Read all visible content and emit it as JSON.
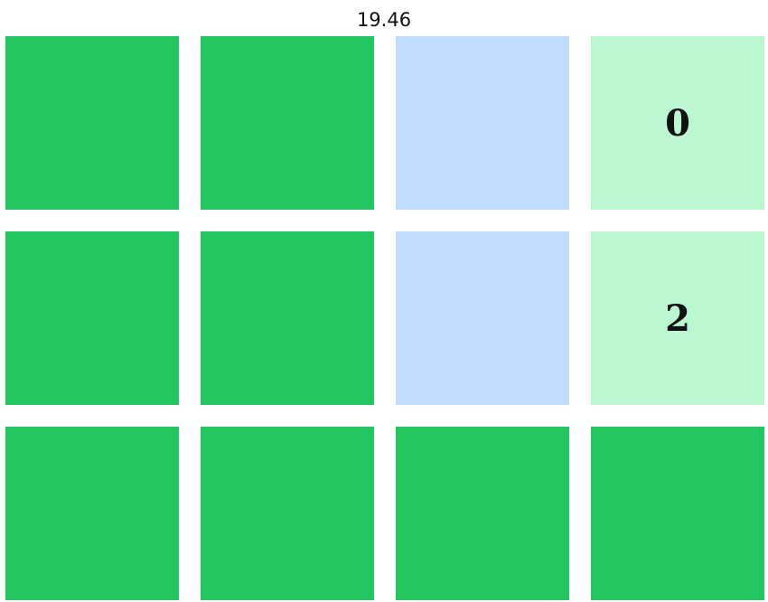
{
  "timer": "19.46",
  "colors": {
    "solved": "#22c55e",
    "hidden": "#bfdbfe",
    "revealed": "#bbf7d0"
  },
  "tiles": [
    {
      "state": "solved",
      "label": ""
    },
    {
      "state": "solved",
      "label": ""
    },
    {
      "state": "hidden",
      "label": ""
    },
    {
      "state": "revealed",
      "label": "0"
    },
    {
      "state": "solved",
      "label": ""
    },
    {
      "state": "solved",
      "label": ""
    },
    {
      "state": "hidden",
      "label": ""
    },
    {
      "state": "revealed",
      "label": "2"
    },
    {
      "state": "solved",
      "label": ""
    },
    {
      "state": "solved",
      "label": ""
    },
    {
      "state": "solved",
      "label": ""
    },
    {
      "state": "solved",
      "label": ""
    }
  ]
}
